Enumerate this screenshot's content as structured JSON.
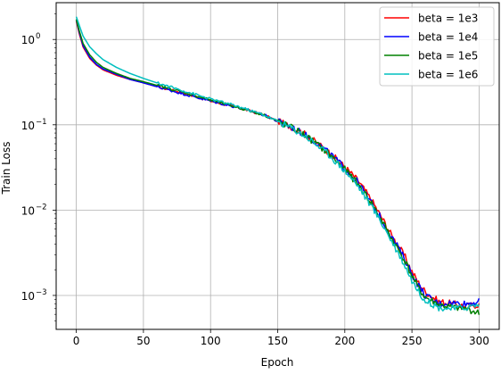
{
  "chart_data": {
    "type": "line",
    "title": "",
    "xlabel": "Epoch",
    "ylabel": "Train Loss",
    "xscale": "linear",
    "yscale": "log",
    "xlim": [
      -15,
      315
    ],
    "ylim": [
      0.0004,
      2.7
    ],
    "xticks": [
      0,
      50,
      100,
      150,
      200,
      250,
      300
    ],
    "yticks": [
      {
        "value": 1,
        "mantissa": "10",
        "exponent": "0"
      },
      {
        "value": 0.1,
        "mantissa": "10",
        "exponent": "−1"
      },
      {
        "value": 0.01,
        "mantissa": "10",
        "exponent": "−2"
      },
      {
        "value": 0.001,
        "mantissa": "10",
        "exponent": "−3"
      }
    ],
    "grid": true,
    "legend_position": "top-right",
    "x": [
      0,
      2,
      5,
      10,
      15,
      20,
      30,
      40,
      50,
      60,
      80,
      100,
      120,
      140,
      150,
      160,
      170,
      180,
      190,
      200,
      210,
      220,
      225,
      230,
      235,
      240,
      245,
      250,
      255,
      260,
      270,
      280,
      290,
      300
    ],
    "series": [
      {
        "name": "beta = 1e3",
        "color": "#ff0000",
        "values": [
          1.65,
          1.2,
          0.82,
          0.6,
          0.5,
          0.44,
          0.38,
          0.34,
          0.31,
          0.28,
          0.235,
          0.19,
          0.16,
          0.13,
          0.11,
          0.095,
          0.078,
          0.06,
          0.045,
          0.032,
          0.022,
          0.013,
          0.0095,
          0.007,
          0.005,
          0.0038,
          0.0028,
          0.0019,
          0.0014,
          0.0011,
          0.00085,
          0.0008,
          0.00075,
          0.00078
        ]
      },
      {
        "name": "beta = 1e4",
        "color": "#0000ff",
        "values": [
          1.7,
          1.25,
          0.85,
          0.62,
          0.51,
          0.45,
          0.39,
          0.34,
          0.31,
          0.28,
          0.23,
          0.19,
          0.16,
          0.13,
          0.11,
          0.094,
          0.077,
          0.06,
          0.044,
          0.031,
          0.021,
          0.012,
          0.009,
          0.0065,
          0.0048,
          0.0036,
          0.0026,
          0.0018,
          0.0013,
          0.001,
          0.0008,
          0.00082,
          0.0008,
          0.00085
        ]
      },
      {
        "name": "beta = 1e5",
        "color": "#008000",
        "values": [
          1.72,
          1.3,
          0.9,
          0.66,
          0.54,
          0.47,
          0.4,
          0.35,
          0.32,
          0.29,
          0.24,
          0.195,
          0.16,
          0.13,
          0.11,
          0.093,
          0.076,
          0.058,
          0.043,
          0.03,
          0.02,
          0.012,
          0.0088,
          0.0064,
          0.0046,
          0.0034,
          0.0025,
          0.0017,
          0.0012,
          0.00095,
          0.00078,
          0.00072,
          0.0007,
          0.00062
        ]
      },
      {
        "name": "beta = 1e6",
        "color": "#00bfbf",
        "values": [
          1.85,
          1.5,
          1.1,
          0.82,
          0.68,
          0.58,
          0.47,
          0.4,
          0.35,
          0.31,
          0.25,
          0.2,
          0.165,
          0.13,
          0.11,
          0.092,
          0.075,
          0.057,
          0.042,
          0.029,
          0.019,
          0.011,
          0.0082,
          0.006,
          0.0043,
          0.0031,
          0.0022,
          0.0015,
          0.0011,
          0.00088,
          0.00072,
          0.0007,
          0.00072,
          0.00078
        ]
      }
    ]
  }
}
